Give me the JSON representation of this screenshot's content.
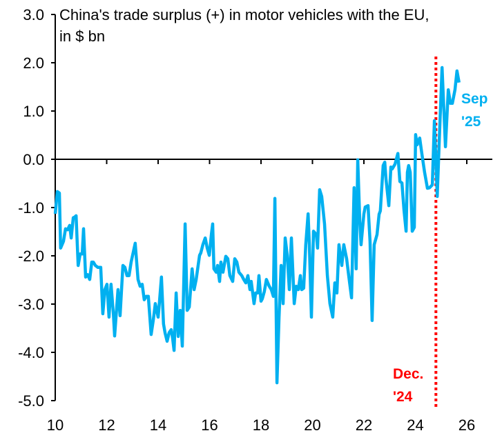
{
  "chart_data": {
    "type": "line",
    "title_line1": "China's trade surplus (+) in motor vehicles with the EU,",
    "title_line2": "in $ bn",
    "xlabel": "",
    "ylabel": "",
    "xlim": [
      10,
      27
    ],
    "ylim": [
      -5,
      3
    ],
    "x_ticks": [
      10,
      12,
      14,
      16,
      18,
      20,
      22,
      24,
      26
    ],
    "x_tick_labels": [
      "10",
      "12",
      "14",
      "16",
      "18",
      "20",
      "22",
      "24",
      "26"
    ],
    "y_ticks": [
      3,
      2,
      1,
      0,
      -1,
      -2,
      -3,
      -4,
      -5
    ],
    "y_tick_labels": [
      "3.0",
      "2.0",
      "1.0",
      "0.0",
      "-1.0",
      "-2.0",
      "-3.0",
      "-4.0",
      "-5.0"
    ],
    "grid": false,
    "colors": {
      "series": "#00b0f0",
      "marker_line": "#ff0000",
      "axis": "#000000"
    },
    "series": [
      {
        "x": [
          10.0,
          10.08,
          10.16,
          10.21,
          10.32,
          10.4,
          10.48,
          10.56,
          10.62,
          10.7,
          10.75,
          10.81,
          10.89,
          10.97,
          11.05,
          11.1,
          11.18,
          11.26,
          11.34,
          11.42,
          11.48,
          11.56,
          11.66,
          11.77,
          11.85,
          11.93,
          12.01,
          12.09,
          12.17,
          12.26,
          12.31,
          12.44,
          12.52,
          12.63,
          12.71,
          12.79,
          12.87,
          12.95,
          13.11,
          13.22,
          13.3,
          13.38,
          13.46,
          13.54,
          13.62,
          13.73,
          13.81,
          13.89,
          14.0,
          14.05,
          14.13,
          14.21,
          14.27,
          14.35,
          14.43,
          14.51,
          14.56,
          14.62,
          14.7,
          14.78,
          14.86,
          14.94,
          15.05,
          15.13,
          15.21,
          15.32,
          15.4,
          15.48,
          15.61,
          15.66,
          15.74,
          15.83,
          15.91,
          15.99,
          16.07,
          16.12,
          16.17,
          16.26,
          16.31,
          16.39,
          16.44,
          16.52,
          16.63,
          16.71,
          16.79,
          16.9,
          16.98,
          17.06,
          17.14,
          17.25,
          17.33,
          17.41,
          17.49,
          17.57,
          17.62,
          17.73,
          17.79,
          17.87,
          17.92,
          18.0,
          18.05,
          18.13,
          18.21,
          18.32,
          18.4,
          18.48,
          18.54,
          18.62,
          18.7,
          18.78,
          18.86,
          18.94,
          19.02,
          19.1,
          19.18,
          19.29,
          19.37,
          19.45,
          19.53,
          19.58,
          19.66,
          19.74,
          19.83,
          19.88,
          19.96,
          20.04,
          20.15,
          20.2,
          20.28,
          20.36,
          20.47,
          20.58,
          20.68,
          20.79,
          20.87,
          20.95,
          21.03,
          21.14,
          21.22,
          21.33,
          21.41,
          21.52,
          21.57,
          21.62,
          21.7,
          21.76,
          21.84,
          21.89,
          22.0,
          22.05,
          22.16,
          22.24,
          22.32,
          22.4,
          22.51,
          22.59,
          22.64,
          22.75,
          22.81,
          22.86,
          22.97,
          23.05,
          23.1,
          23.21,
          23.32,
          23.4,
          23.48,
          23.56,
          23.64,
          23.69,
          23.74,
          23.8,
          23.88,
          23.96,
          24.01,
          24.07,
          24.17,
          24.26,
          24.36,
          24.47,
          24.55,
          24.66,
          24.74,
          24.85,
          24.93,
          25.04,
          25.17,
          25.28,
          25.36,
          25.44,
          25.54,
          25.62,
          25.7
        ],
        "y": [
          -1.13,
          -0.67,
          -0.7,
          -1.84,
          -1.7,
          -1.44,
          -1.46,
          -1.37,
          -1.63,
          -1.21,
          -1.2,
          -1.17,
          -2.2,
          -1.96,
          -1.96,
          -1.44,
          -2.44,
          -2.39,
          -2.49,
          -2.13,
          -2.13,
          -2.2,
          -2.24,
          -2.24,
          -3.2,
          -2.7,
          -2.59,
          -3.27,
          -2.59,
          -3.2,
          -3.66,
          -2.7,
          -3.24,
          -2.2,
          -2.24,
          -2.41,
          -2.41,
          -2.13,
          -1.74,
          -2.49,
          -2.63,
          -2.59,
          -2.91,
          -2.84,
          -2.84,
          -3.63,
          -3.34,
          -2.99,
          -3.27,
          -2.96,
          -2.44,
          -3.41,
          -3.6,
          -3.77,
          -3.59,
          -3.53,
          -3.7,
          -3.96,
          -2.77,
          -3.67,
          -3.13,
          -3.87,
          -1.34,
          -3.13,
          -3.06,
          -2.27,
          -2.7,
          -2.49,
          -1.99,
          -1.94,
          -1.77,
          -1.63,
          -1.84,
          -1.99,
          -1.56,
          -1.34,
          -2.27,
          -2.34,
          -2.2,
          -2.53,
          -2.13,
          -2.34,
          -2.01,
          -2.06,
          -2.41,
          -2.53,
          -2.06,
          -2.13,
          -2.34,
          -2.41,
          -2.49,
          -2.56,
          -2.41,
          -2.7,
          -2.53,
          -2.99,
          -2.77,
          -2.77,
          -2.41,
          -2.94,
          -2.89,
          -2.74,
          -2.49,
          -2.63,
          -2.7,
          -2.84,
          -0.81,
          -4.63,
          -3.27,
          -2.2,
          -2.99,
          -1.63,
          -1.99,
          -2.7,
          -1.63,
          -2.99,
          -2.63,
          -2.7,
          -2.41,
          -2.7,
          -2.67,
          -1.77,
          -1.13,
          -1.77,
          -3.27,
          -1.49,
          -1.56,
          -1.84,
          -0.63,
          -0.77,
          -1.34,
          -2.41,
          -2.99,
          -3.27,
          -2.56,
          -2.77,
          -1.77,
          -2.2,
          -1.77,
          -2.06,
          -2.41,
          -2.87,
          -1.7,
          -0.59,
          -2.27,
          -0.01,
          -1.27,
          -1.77,
          -1.13,
          -0.99,
          -0.96,
          -1.7,
          -3.34,
          -1.77,
          -1.56,
          -1.14,
          -1.07,
          -0.13,
          -0.06,
          -0.41,
          -0.96,
          -0.16,
          -0.2,
          -0.1,
          0.12,
          -0.46,
          -0.49,
          -1.06,
          -1.49,
          -0.27,
          -0.13,
          -0.27,
          -1.49,
          -1.41,
          0.51,
          0.3,
          0.44,
          0.09,
          -0.27,
          -0.6,
          -0.59,
          -0.53,
          0.8,
          -0.77,
          0.37,
          1.9,
          0.26,
          1.44,
          1.16,
          1.16,
          1.44,
          1.83,
          1.59
        ]
      }
    ],
    "annotations": [
      {
        "label_line1": "Sep",
        "label_line2": "'25",
        "color": "#00b0f0"
      },
      {
        "label_line1": "Dec.",
        "label_line2": "'24",
        "color": "#ff0000",
        "x": 24.8
      }
    ]
  }
}
